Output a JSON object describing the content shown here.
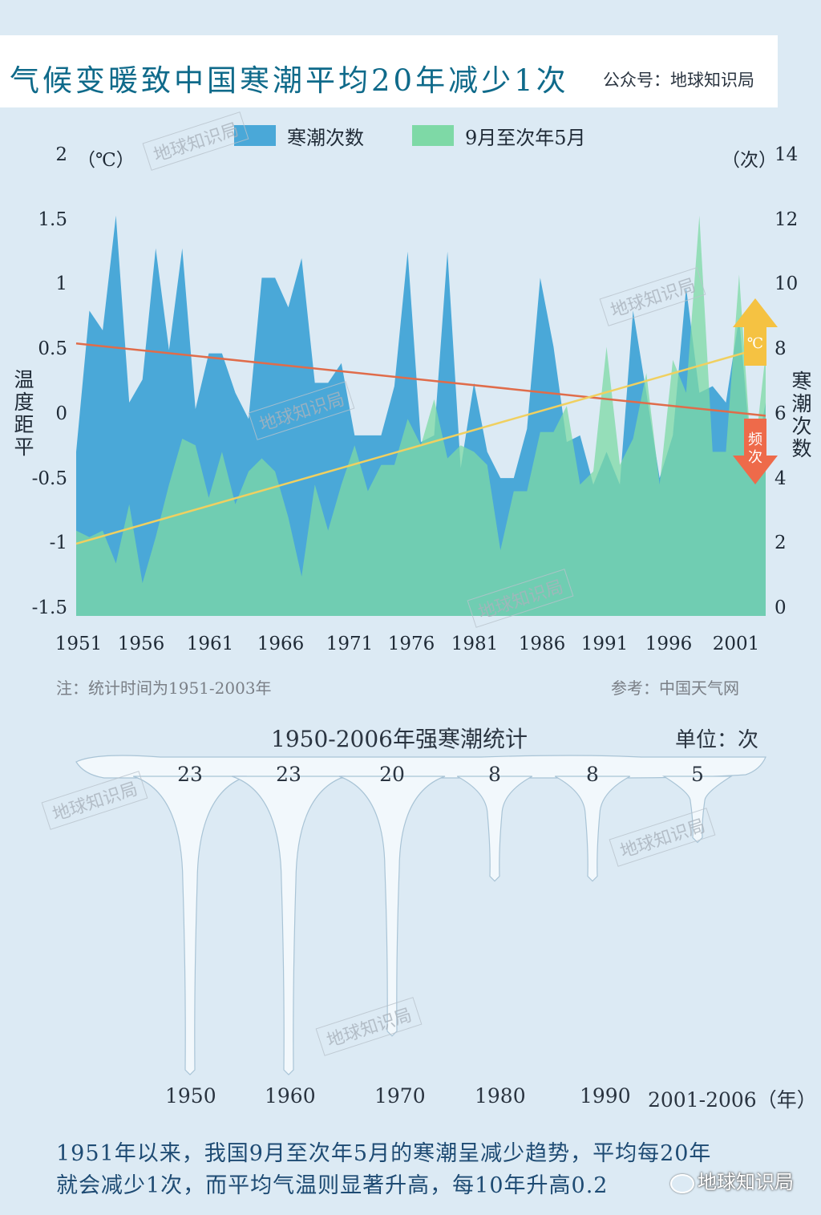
{
  "header": {
    "title": "气候变暖致中国寒潮平均20年减少1次",
    "source": "公众号：地球知识局"
  },
  "legend": {
    "series1": "寒潮次数",
    "series2": "9月至次年5月",
    "color1": "#4aa8d8",
    "color2": "#7ed9a6"
  },
  "chart_data": {
    "type": "area",
    "x": [
      1951,
      1952,
      1953,
      1954,
      1955,
      1956,
      1957,
      1958,
      1959,
      1960,
      1961,
      1962,
      1963,
      1964,
      1965,
      1966,
      1967,
      1968,
      1969,
      1970,
      1971,
      1972,
      1973,
      1974,
      1975,
      1976,
      1977,
      1978,
      1979,
      1980,
      1981,
      1982,
      1983,
      1984,
      1985,
      1986,
      1987,
      1988,
      1989,
      1990,
      1991,
      1992,
      1993,
      1994,
      1995,
      1996,
      1997,
      1998,
      1999,
      2000,
      2001,
      2002,
      2003
    ],
    "xticks": [
      "1951",
      "1956",
      "1961",
      "1966",
      "1971",
      "1976",
      "1981",
      "1986",
      "1991",
      "1996",
      "2001"
    ],
    "y_left_ticks": [
      "2",
      "1.5",
      "1",
      "0.5",
      "0",
      "-0.5",
      "-1",
      "-1.5"
    ],
    "y_right_ticks": [
      "14",
      "12",
      "10",
      "8",
      "6",
      "4",
      "2",
      "0"
    ],
    "left_unit": "（℃）",
    "right_unit": "（次）",
    "ylabel_left": "温度距平",
    "ylabel_right": "寒潮次数",
    "ylim_left": [
      -1.5,
      2
    ],
    "ylim_right": [
      0,
      14
    ],
    "series": [
      {
        "name": "寒潮次数",
        "axis": "right",
        "color": "#4aa8d8",
        "values": [
          5.0,
          9.3,
          8.7,
          12.2,
          6.5,
          7.2,
          11.2,
          8.1,
          11.2,
          6.3,
          8.0,
          8.0,
          6.8,
          6.0,
          10.3,
          10.3,
          9.4,
          10.9,
          7.1,
          7.1,
          7.7,
          5.5,
          5.5,
          5.5,
          7.0,
          11.1,
          5.3,
          5.5,
          11.1,
          4.5,
          7.1,
          5.0,
          4.2,
          4.2,
          5.7,
          10.3,
          8.2,
          5.3,
          5.5,
          4.0,
          5.0,
          4.0,
          9.3,
          6.8,
          4.2,
          5.5,
          10.0,
          6.8,
          7.0,
          6.5,
          9.1,
          4.4,
          6.5
        ]
      },
      {
        "name": "9月至次年5月",
        "axis": "left",
        "color": "#7ed9a6",
        "values": [
          -0.85,
          -0.9,
          -0.85,
          -1.1,
          -0.65,
          -1.25,
          -0.9,
          -0.5,
          -0.15,
          -0.2,
          -0.6,
          -0.25,
          -0.65,
          -0.4,
          -0.3,
          -0.4,
          -0.75,
          -1.2,
          -0.5,
          -0.85,
          -0.5,
          -0.2,
          -0.55,
          -0.35,
          -0.35,
          0.0,
          -0.2,
          0.15,
          -0.3,
          -0.2,
          -0.25,
          -0.35,
          -1.0,
          -0.55,
          -0.55,
          -0.1,
          -0.1,
          0.1,
          -0.5,
          -0.4,
          0.55,
          -0.35,
          -0.15,
          0.35,
          -0.5,
          0.45,
          0.2,
          1.55,
          -0.25,
          -0.25,
          1.1,
          -0.4,
          0.5
        ]
      }
    ],
    "trends": [
      {
        "axis": "right",
        "color": "#e06c4a",
        "from": [
          1951,
          8.3
        ],
        "to": [
          2003,
          6.1
        ]
      },
      {
        "axis": "left",
        "color": "#f0d060",
        "from": [
          1951,
          -0.95
        ],
        "to": [
          2003,
          0.55
        ]
      }
    ],
    "arrow_up": "℃",
    "arrow_down": "频次"
  },
  "notes": {
    "left": "注：统计时间为1951-2003年",
    "right": "参考：中国天气网"
  },
  "icicles": {
    "title": "1950-2006年强寒潮统计",
    "unit": "单位：次",
    "values": [
      "23",
      "23",
      "20",
      "8",
      "8",
      "5"
    ],
    "labels": [
      "1950",
      "1960",
      "1970",
      "1980",
      "1990",
      "2001-2006（年）"
    ],
    "chart_data": {
      "type": "bar",
      "categories": [
        "1950",
        "1960",
        "1970",
        "1980",
        "1990",
        "2001-2006"
      ],
      "values": [
        23,
        23,
        20,
        8,
        8,
        5
      ]
    }
  },
  "caption": {
    "line1": "1951年以来，我国9月至次年5月的寒潮呈减少趋势，平均每20年",
    "line2": "就会减少1次，而平均气温则显著升高，每10年升高0.2"
  },
  "watermark": "地球知识局",
  "brand": "地球知识局"
}
